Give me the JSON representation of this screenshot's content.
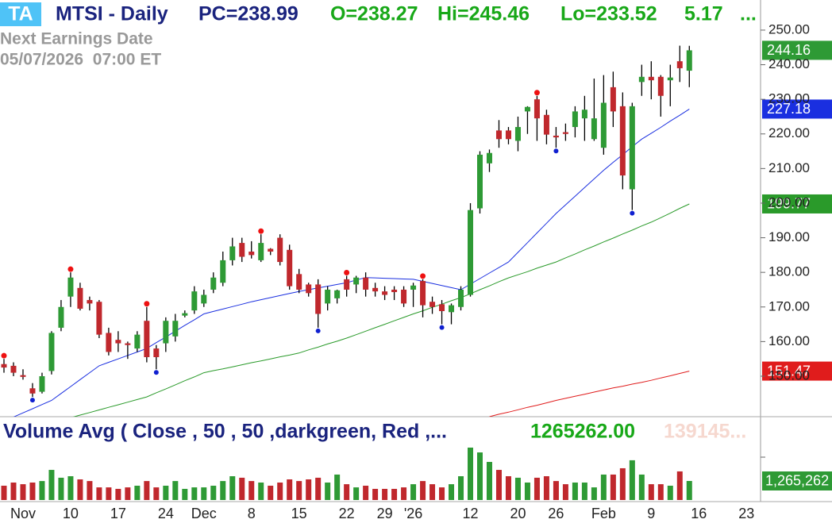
{
  "header": {
    "badge": "TA",
    "symbol": "MTSI - Daily",
    "pc": "PC=238.99",
    "open": "O=238.27",
    "high": "Hi=245.46",
    "low": "Lo=233.52",
    "change": "5.17",
    "more": "...",
    "earnings_label": "Next Earnings Date",
    "earnings_date": "05/07/2026  07:00 ET"
  },
  "chart_data": [
    {
      "type": "candlestick",
      "categories": [
        null,
        null,
        "Nov",
        null,
        null,
        null,
        null,
        "10",
        null,
        null,
        null,
        null,
        "17",
        null,
        null,
        null,
        null,
        "24",
        null,
        null,
        null,
        "Dec",
        null,
        null,
        null,
        null,
        "8",
        null,
        null,
        null,
        null,
        "15",
        null,
        null,
        null,
        null,
        "22",
        null,
        null,
        null,
        "29",
        null,
        null,
        "'26",
        null,
        null,
        null,
        null,
        null,
        "12",
        null,
        null,
        null,
        null,
        "20",
        null,
        null,
        null,
        "26",
        null,
        null,
        null,
        null,
        "Feb",
        null,
        null,
        null,
        null,
        "9",
        null,
        null,
        null,
        null,
        "16",
        null,
        null,
        null,
        null,
        "23",
        null
      ],
      "open": [
        153.5,
        153,
        150.3,
        146.5,
        145.5,
        151.5,
        164,
        173,
        175.5,
        172,
        171.5,
        162.5,
        160.5,
        159.5,
        158,
        166,
        158,
        159.5,
        161.5,
        167.5,
        169,
        171,
        175,
        177,
        183.5,
        188.5,
        186,
        183.5,
        186.8,
        190,
        186.5,
        179.5,
        176.5,
        176.5,
        171,
        172.5,
        178,
        176.5,
        178.5,
        175.5,
        174.5,
        175,
        175,
        175,
        177.5,
        171.5,
        170.8,
        168.5,
        170,
        173.5,
        198.5,
        211.5,
        221,
        221,
        218,
        226.5,
        230,
        225.5,
        219.5,
        220.5,
        222,
        224.5,
        218.5,
        216,
        233.5,
        228,
        204,
        235,
        236.5,
        236.5,
        235.5,
        241,
        238.27,
        null,
        null,
        null,
        null,
        null,
        null,
        null
      ],
      "high": [
        155,
        154,
        152,
        148,
        151,
        163,
        172,
        180,
        177,
        173,
        172,
        164,
        163,
        160,
        163,
        170,
        159,
        167,
        168,
        169,
        176,
        175,
        180,
        186,
        190,
        190,
        189,
        191,
        187,
        191,
        188,
        181,
        177,
        178,
        176,
        175,
        179,
        179,
        180,
        177,
        176,
        176,
        176,
        177,
        178,
        173,
        172,
        171,
        176,
        200,
        215,
        215.5,
        224,
        222,
        225,
        228,
        231,
        227,
        222,
        223,
        228,
        231,
        236,
        237,
        238,
        232,
        229,
        240,
        241,
        237,
        240,
        245.5,
        245.46,
        null,
        null,
        null,
        null,
        null,
        null,
        null
      ],
      "low": [
        151,
        150,
        149,
        144,
        145,
        150.5,
        163,
        170,
        169,
        169,
        161,
        156,
        157,
        155,
        157,
        154,
        152,
        157,
        160,
        167,
        168,
        170,
        174,
        176,
        182,
        183,
        184,
        183,
        185,
        182,
        175,
        174,
        173,
        164,
        169,
        171,
        173,
        174,
        173,
        173,
        172,
        172,
        170,
        170,
        167,
        168,
        165,
        165,
        169,
        173,
        197,
        209,
        216,
        217,
        215,
        220,
        218,
        217,
        216,
        218,
        219,
        218,
        218,
        214,
        222,
        204,
        198,
        231,
        230,
        225,
        228,
        235,
        233.52,
        null,
        null,
        null,
        null,
        null,
        null,
        null
      ],
      "close": [
        152.5,
        151,
        149.8,
        145,
        150,
        162.5,
        170,
        178.5,
        169.5,
        171,
        162,
        157,
        159.5,
        159,
        162,
        155.5,
        155.5,
        166,
        166,
        168.2,
        174.5,
        173.5,
        178.5,
        183.5,
        187.5,
        184.5,
        185,
        188.5,
        186,
        183,
        176,
        175,
        174,
        168,
        175,
        174.8,
        175,
        178.5,
        175,
        174.5,
        173.5,
        174.3,
        171,
        176.2,
        170.5,
        170,
        168.8,
        170.5,
        175,
        198,
        214,
        214.5,
        218.5,
        218.5,
        222,
        227.8,
        224.5,
        219.8,
        219,
        220,
        226.5,
        227,
        224.5,
        229,
        226.5,
        208,
        228,
        236.5,
        235.5,
        231,
        236.3,
        238.99,
        244.16,
        null,
        null,
        null,
        null,
        null,
        null,
        null
      ],
      "up_color": "#2e9a35",
      "down_color": "#c0282d",
      "swing_highs": [
        0,
        7,
        15,
        27,
        36,
        44,
        56
      ],
      "swing_lows": [
        3,
        16,
        33,
        46,
        58,
        66
      ],
      "swing_high_color": "#ee1111",
      "swing_low_color": "#1020d0",
      "moving_averages": [
        {
          "color": "#1a2fe0",
          "values": [
            137,
            138.2,
            139.4,
            140.6,
            141.8,
            143,
            145,
            147,
            149,
            151,
            153,
            154,
            155,
            156,
            157,
            158,
            159.7,
            161.3,
            163,
            164.7,
            166.3,
            168,
            168.7,
            169.4,
            170.1,
            170.8,
            171.5,
            172.1,
            172.7,
            173.3,
            173.9,
            174.5,
            175,
            175.5,
            176,
            176.5,
            177,
            177.8,
            178.5,
            178.4,
            178.3,
            178.2,
            178.1,
            178,
            177.4,
            176.8,
            176.2,
            175.6,
            175,
            176.6,
            178.2,
            179.8,
            181.4,
            183,
            185.8,
            188.6,
            191.4,
            194.2,
            197,
            199.5,
            202,
            204.5,
            207,
            209.5,
            211.8,
            214,
            216.3,
            218.5,
            220.2,
            221.9,
            223.7,
            225.4,
            227.18,
            null,
            null,
            null,
            null,
            null,
            null,
            null
          ]
        },
        {
          "color": "#2a9a2a",
          "values": [
            134.5,
            135,
            135.5,
            136,
            136.5,
            137,
            137.5,
            138,
            138.75,
            139.5,
            140.25,
            141,
            141.75,
            142.5,
            143.25,
            144,
            145.2,
            146.3,
            147.5,
            148.7,
            149.8,
            151,
            151.6,
            152.1,
            152.7,
            153.3,
            153.9,
            154.4,
            155,
            155.6,
            156.1,
            156.7,
            157.6,
            158.4,
            159.3,
            160.1,
            161,
            162,
            163,
            164,
            165,
            166,
            167,
            168,
            168.9,
            169.9,
            170.8,
            171.8,
            172.7,
            173.8,
            175,
            176.1,
            177.3,
            178.4,
            179.3,
            180.2,
            181.2,
            182.1,
            183,
            184.2,
            185.3,
            186.5,
            187.6,
            188.8,
            189.9,
            191.1,
            192.2,
            193.4,
            194.5,
            195.8,
            197.1,
            198.5,
            199.77,
            null,
            null,
            null,
            null,
            null,
            null,
            null
          ]
        },
        {
          "color": "#e01c1c",
          "values": [
            null,
            null,
            null,
            null,
            null,
            null,
            null,
            null,
            null,
            null,
            null,
            null,
            null,
            null,
            null,
            null,
            null,
            null,
            null,
            null,
            null,
            null,
            null,
            null,
            null,
            null,
            null,
            null,
            null,
            null,
            null,
            null,
            null,
            null,
            null,
            null,
            null,
            null,
            null,
            null,
            null,
            null,
            null,
            null,
            null,
            null,
            null,
            null,
            null,
            null,
            null,
            138.3,
            139,
            139.6,
            140.3,
            141,
            141.6,
            142.3,
            143,
            143.6,
            144.2,
            144.8,
            145.4,
            146,
            146.6,
            147.1,
            147.7,
            148.2,
            148.8,
            149.5,
            150.1,
            150.8,
            151.47,
            null,
            null,
            null,
            null,
            null,
            null,
            null
          ]
        }
      ],
      "ylim": [
        138.3,
        258.7
      ],
      "yticks": [
        {
          "value": 150,
          "label": "150.00"
        },
        {
          "value": 160,
          "label": "160.00"
        },
        {
          "value": 170,
          "label": "170.00"
        },
        {
          "value": 180,
          "label": "180.00"
        },
        {
          "value": 190,
          "label": "190.00"
        },
        {
          "value": 200,
          "label": "200.00"
        },
        {
          "value": 210,
          "label": "210.00"
        },
        {
          "value": 220,
          "label": "220.00"
        },
        {
          "value": 230,
          "label": "230.00"
        },
        {
          "value": 240,
          "label": "240.00"
        },
        {
          "value": 250,
          "label": "250.00"
        }
      ]
    },
    {
      "type": "volume",
      "title": "Volume Avg ( Close , 50 , 50 ,darkgreen, Red ,...",
      "current_label": "1265262.00",
      "avg_label": "139145...",
      "last_label": "1,265,262",
      "values": [
        950000,
        1160000,
        1050000,
        1160000,
        1260000,
        2000000,
        1480000,
        1580000,
        1370000,
        1260000,
        840000,
        840000,
        740000,
        840000,
        950000,
        1260000,
        840000,
        950000,
        1260000,
        740000,
        840000,
        840000,
        950000,
        1260000,
        1580000,
        1480000,
        1260000,
        1160000,
        950000,
        1160000,
        1370000,
        1260000,
        1370000,
        1480000,
        1160000,
        1690000,
        1050000,
        840000,
        950000,
        740000,
        740000,
        740000,
        840000,
        1050000,
        1260000,
        1050000,
        840000,
        1050000,
        1580000,
        3480000,
        3160000,
        2530000,
        2000000,
        1580000,
        1480000,
        1160000,
        1480000,
        1580000,
        1260000,
        1050000,
        1160000,
        1160000,
        840000,
        1690000,
        1690000,
        2110000,
        2640000,
        1690000,
        1050000,
        1050000,
        950000,
        1900000,
        1265262,
        null,
        null,
        null,
        null,
        null,
        null,
        null
      ],
      "ylim": [
        0,
        5270000
      ]
    }
  ]
}
